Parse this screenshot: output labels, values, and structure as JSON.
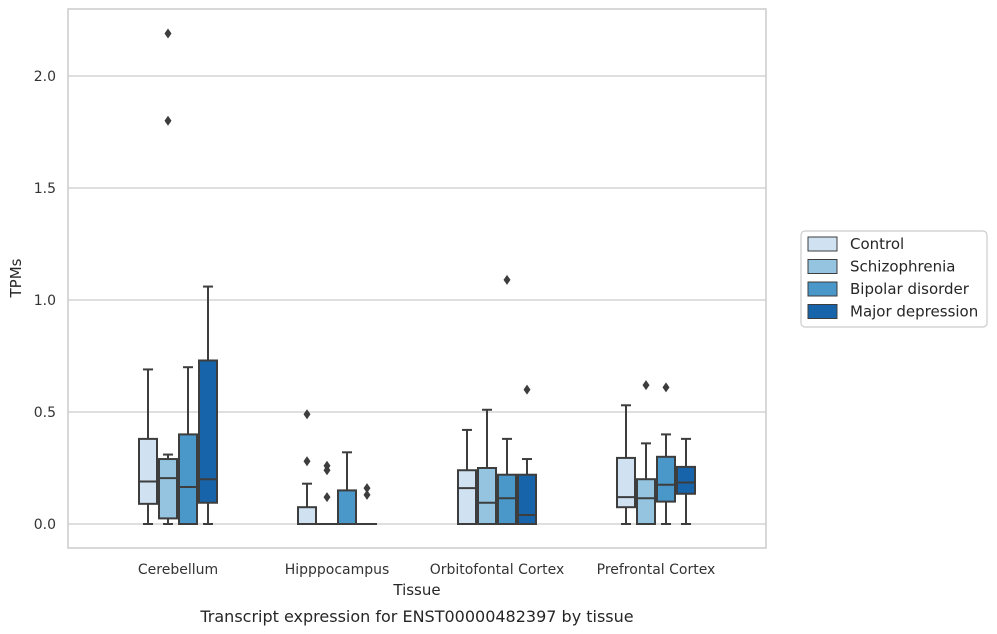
{
  "chart_data": {
    "type": "box",
    "title": "",
    "xlabel": "Tissue",
    "ylabel": "TPMs",
    "caption": "Transcript expression for ENST00000482397 by tissue",
    "ylim": [
      -0.1,
      2.3
    ],
    "yticks": [
      0.0,
      0.5,
      1.0,
      1.5,
      2.0
    ],
    "ytick_labels": [
      "0.0",
      "0.5",
      "1.0",
      "1.5",
      "2.0"
    ],
    "grid": "horizontal",
    "legend_position": "right",
    "categories": [
      "Cerebellum",
      "Hipppocampus",
      "Orbitofontal Cortex",
      "Prefrontal Cortex"
    ],
    "series": [
      {
        "name": "Control",
        "color": "#d0e1f2",
        "boxes": [
          {
            "min": 0.0,
            "q1": 0.09,
            "median": 0.19,
            "q3": 0.38,
            "max": 0.69,
            "outliers": []
          },
          {
            "min": 0.0,
            "q1": 0.0,
            "median": 0.0,
            "q3": 0.075,
            "max": 0.18,
            "outliers": [
              0.28,
              0.49
            ]
          },
          {
            "min": 0.0,
            "q1": 0.0,
            "median": 0.16,
            "q3": 0.24,
            "max": 0.42,
            "outliers": []
          },
          {
            "min": 0.0,
            "q1": 0.075,
            "median": 0.12,
            "q3": 0.295,
            "max": 0.53,
            "outliers": []
          }
        ]
      },
      {
        "name": "Schizophrenia",
        "color": "#94c4df",
        "boxes": [
          {
            "min": 0.0,
            "q1": 0.025,
            "median": 0.205,
            "q3": 0.29,
            "max": 0.31,
            "outliers": [
              1.8,
              2.19
            ]
          },
          {
            "min": 0.0,
            "q1": 0.0,
            "median": 0.0,
            "q3": 0.0,
            "max": 0.0,
            "outliers": [
              0.12,
              0.24,
              0.26
            ]
          },
          {
            "min": 0.0,
            "q1": 0.0,
            "median": 0.095,
            "q3": 0.25,
            "max": 0.51,
            "outliers": []
          },
          {
            "min": 0.0,
            "q1": 0.0,
            "median": 0.115,
            "q3": 0.2,
            "max": 0.36,
            "outliers": [
              0.62
            ]
          }
        ]
      },
      {
        "name": "Bipolar disorder",
        "color": "#4a98c9",
        "boxes": [
          {
            "min": 0.0,
            "q1": 0.0,
            "median": 0.165,
            "q3": 0.4,
            "max": 0.7,
            "outliers": []
          },
          {
            "min": 0.0,
            "q1": 0.0,
            "median": 0.0,
            "q3": 0.15,
            "max": 0.32,
            "outliers": []
          },
          {
            "min": 0.0,
            "q1": 0.0,
            "median": 0.115,
            "q3": 0.22,
            "max": 0.38,
            "outliers": [
              1.09
            ]
          },
          {
            "min": 0.0,
            "q1": 0.1,
            "median": 0.175,
            "q3": 0.3,
            "max": 0.4,
            "outliers": [
              0.61
            ]
          }
        ]
      },
      {
        "name": "Major depression",
        "color": "#1764ab",
        "boxes": [
          {
            "min": 0.0,
            "q1": 0.095,
            "median": 0.2,
            "q3": 0.73,
            "max": 1.06,
            "outliers": []
          },
          {
            "min": 0.0,
            "q1": 0.0,
            "median": 0.0,
            "q3": 0.0,
            "max": 0.0,
            "outliers": [
              0.13,
              0.16
            ]
          },
          {
            "min": 0.0,
            "q1": 0.0,
            "median": 0.04,
            "q3": 0.22,
            "max": 0.29,
            "outliers": [
              0.6
            ]
          },
          {
            "min": 0.0,
            "q1": 0.135,
            "median": 0.185,
            "q3": 0.255,
            "max": 0.38,
            "outliers": []
          }
        ]
      }
    ]
  }
}
